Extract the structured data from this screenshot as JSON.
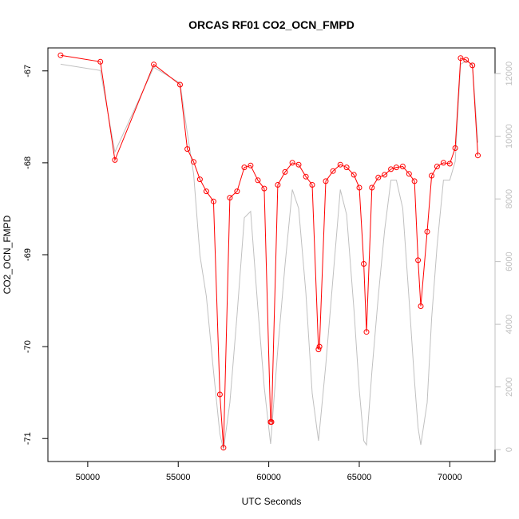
{
  "chart_data": {
    "type": "line",
    "title": "ORCAS RF01 CO2_OCN_FMPD",
    "xlabel": "UTC Seconds",
    "ylabel": "CO2_OCN_FMPD",
    "xlim": [
      47800,
      72500
    ],
    "ylim": [
      -71.25,
      -66.75
    ],
    "y2lim": [
      -380,
      12820
    ],
    "x_ticks": [
      50000,
      55000,
      60000,
      65000,
      70000
    ],
    "x_tick_labels": [
      "50000",
      "55000",
      "60000",
      "65000",
      "70000"
    ],
    "y_ticks": [
      -67,
      -68,
      -69,
      -70,
      -71
    ],
    "y_tick_labels": [
      "-67",
      "-68",
      "-69",
      "-70",
      "-71"
    ],
    "y2_ticks": [
      0,
      2000,
      4000,
      6000,
      8000,
      10000,
      12000
    ],
    "y2_tick_labels": [
      "0",
      "2000",
      "4000",
      "6000",
      "8000",
      "10000",
      "12000"
    ],
    "grid": false,
    "series": [
      {
        "axis": "left",
        "color": "#ff0000",
        "marker": "open-circle",
        "x": [
          48500,
          50700,
          51500,
          53650,
          55100,
          55500,
          55850,
          56200,
          56550,
          56950,
          57300,
          57500,
          57850,
          58250,
          58650,
          59000,
          59400,
          59750,
          60100,
          60150,
          60500,
          60900,
          61300,
          61650,
          62050,
          62400,
          62750,
          62800,
          63150,
          63550,
          63950,
          64300,
          64700,
          65000,
          65250,
          65400,
          65700,
          66050,
          66400,
          66750,
          67050,
          67400,
          67750,
          68050,
          68250,
          68400,
          68750,
          69000,
          69300,
          69650,
          70000,
          70300,
          70600,
          70900,
          71250,
          71550
        ],
        "values": [
          -66.83,
          -66.9,
          -67.97,
          -66.93,
          -67.15,
          -67.85,
          -67.99,
          -68.18,
          -68.31,
          -68.42,
          -70.52,
          -71.1,
          -68.38,
          -68.31,
          -68.05,
          -68.03,
          -68.19,
          -68.28,
          -70.82,
          -70.82,
          -68.24,
          -68.1,
          -68.0,
          -68.02,
          -68.15,
          -68.24,
          -70.03,
          -70.0,
          -68.2,
          -68.09,
          -68.02,
          -68.05,
          -68.13,
          -68.27,
          -69.1,
          -69.84,
          -68.27,
          -68.16,
          -68.13,
          -68.07,
          -68.05,
          -68.04,
          -68.12,
          -68.2,
          -69.06,
          -69.56,
          -68.75,
          -68.14,
          -68.04,
          -68.0,
          -68.01,
          -67.84,
          -66.86,
          -66.88,
          -66.94,
          -67.92
        ]
      },
      {
        "axis": "right",
        "color": "#c0c0c0",
        "x": [
          48500,
          50700,
          51500,
          53650,
          55100,
          55500,
          55850,
          56200,
          56550,
          56950,
          57300,
          57500,
          57850,
          58250,
          58650,
          59000,
          59400,
          59750,
          60100,
          60500,
          60900,
          61300,
          61650,
          62050,
          62400,
          62750,
          63150,
          63550,
          63950,
          64300,
          64700,
          65000,
          65250,
          65400,
          65700,
          66050,
          66400,
          66750,
          67050,
          67400,
          67750,
          68050,
          68250,
          68400,
          68750,
          69000,
          69300,
          69650,
          70000,
          70300,
          70600,
          70900,
          71250,
          71550
        ],
        "values": [
          12300,
          12100,
          9500,
          12200,
          11700,
          10100,
          8800,
          6200,
          4900,
          2500,
          500,
          0,
          1500,
          4300,
          7400,
          7600,
          4500,
          2000,
          180,
          3200,
          5900,
          8300,
          7700,
          5000,
          1800,
          280,
          2700,
          5500,
          8300,
          7500,
          4500,
          1900,
          280,
          150,
          2500,
          4900,
          7000,
          8600,
          8600,
          7700,
          4800,
          2200,
          700,
          150,
          1500,
          4200,
          6500,
          8600,
          8600,
          9200,
          12300,
          12400,
          12300,
          9800
        ]
      }
    ]
  }
}
